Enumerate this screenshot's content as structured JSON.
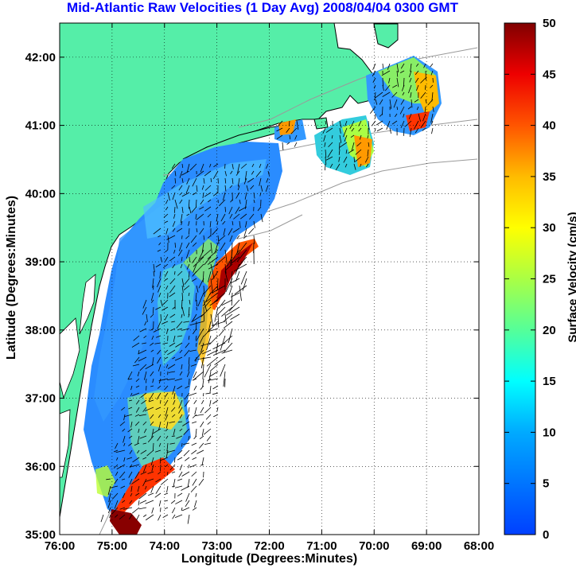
{
  "title": "Mid-Atlantic Raw Velocities (1 Day Avg) 2008/04/04 0300 GMT",
  "map": {
    "xlabel": "Longitude (Degrees:Minutes)",
    "ylabel": "Latitude (Degrees:Minutes)",
    "lon_ticks": [
      "76:00",
      "75:00",
      "74:00",
      "73:00",
      "72:00",
      "71:00",
      "70:00",
      "69:00",
      "68:00"
    ],
    "lat_ticks": [
      "42:00",
      "41:00",
      "40:00",
      "39:00",
      "38:00",
      "37:00",
      "36:00",
      "35:00"
    ],
    "land_color": "#55eea8",
    "grid": "dotted"
  },
  "colorbar": {
    "label": "Surface Velocity (cm/s)",
    "ticks": [
      "50",
      "45",
      "40",
      "35",
      "30",
      "25",
      "20",
      "15",
      "10",
      "5",
      "0"
    ],
    "range": [
      0,
      50
    ],
    "colormap": "jet"
  }
}
